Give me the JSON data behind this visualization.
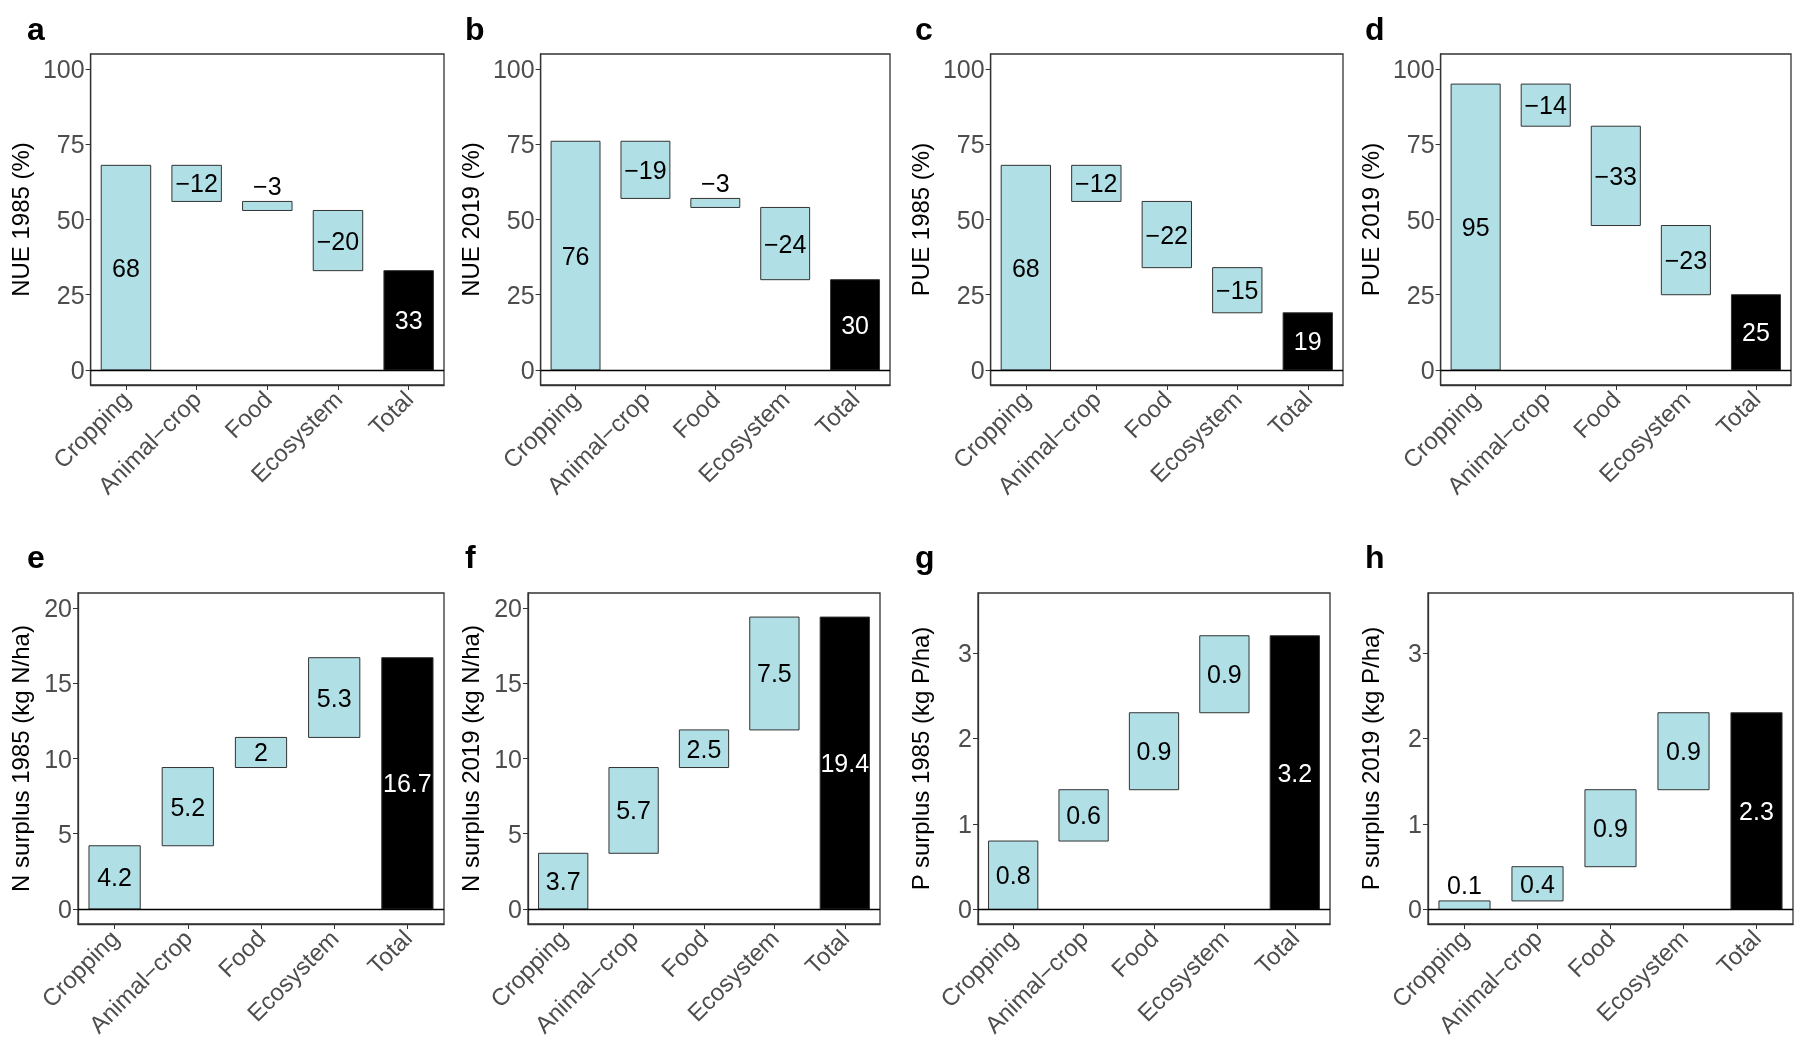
{
  "chart_data": [
    {
      "type": "bar",
      "title": "a",
      "ylabel": "NUE 1985 (%)",
      "categories": [
        "Cropping",
        "Animal−crop",
        "Food",
        "Ecosystem",
        "Total"
      ],
      "values": [
        68,
        -12,
        -3,
        -20,
        33
      ],
      "base": [
        0,
        68,
        56,
        53,
        0
      ],
      "colors": [
        "#b0e0e6",
        "#b0e0e6",
        "#b0e0e6",
        "#b0e0e6",
        "#000000"
      ],
      "value_labels": [
        "68",
        "−12",
        "−3",
        "−20",
        "33"
      ],
      "ylim": [
        -5,
        105
      ],
      "yticks": [
        0,
        25,
        50,
        75,
        100
      ],
      "ref_lines": [
        {
          "axis": "y",
          "value": 0
        }
      ]
    },
    {
      "type": "bar",
      "title": "b",
      "ylabel": "NUE 2019 (%)",
      "categories": [
        "Cropping",
        "Animal−crop",
        "Food",
        "Ecosystem",
        "Total"
      ],
      "values": [
        76,
        -19,
        -3,
        -24,
        30
      ],
      "base": [
        0,
        76,
        57,
        54,
        0
      ],
      "colors": [
        "#b0e0e6",
        "#b0e0e6",
        "#b0e0e6",
        "#b0e0e6",
        "#000000"
      ],
      "value_labels": [
        "76",
        "−19",
        "−3",
        "−24",
        "30"
      ],
      "ylim": [
        -5,
        105
      ],
      "yticks": [
        0,
        25,
        50,
        75,
        100
      ],
      "ref_lines": [
        {
          "axis": "y",
          "value": 0
        }
      ]
    },
    {
      "type": "bar",
      "title": "c",
      "ylabel": "PUE 1985 (%)",
      "categories": [
        "Cropping",
        "Animal−crop",
        "Food",
        "Ecosystem",
        "Total"
      ],
      "values": [
        68,
        -12,
        -22,
        -15,
        19
      ],
      "base": [
        0,
        68,
        56,
        34,
        0
      ],
      "colors": [
        "#b0e0e6",
        "#b0e0e6",
        "#b0e0e6",
        "#b0e0e6",
        "#000000"
      ],
      "value_labels": [
        "68",
        "−12",
        "−22",
        "−15",
        "19"
      ],
      "ylim": [
        -5,
        105
      ],
      "yticks": [
        0,
        25,
        50,
        75,
        100
      ],
      "ref_lines": [
        {
          "axis": "y",
          "value": 0
        }
      ]
    },
    {
      "type": "bar",
      "title": "d",
      "ylabel": "PUE 2019 (%)",
      "categories": [
        "Cropping",
        "Animal−crop",
        "Food",
        "Ecosystem",
        "Total"
      ],
      "values": [
        95,
        -14,
        -33,
        -23,
        25
      ],
      "base": [
        0,
        95,
        81,
        48,
        0
      ],
      "colors": [
        "#b0e0e6",
        "#b0e0e6",
        "#b0e0e6",
        "#b0e0e6",
        "#000000"
      ],
      "value_labels": [
        "95",
        "−14",
        "−33",
        "−23",
        "25"
      ],
      "ylim": [
        -5,
        105
      ],
      "yticks": [
        0,
        25,
        50,
        75,
        100
      ],
      "ref_lines": [
        {
          "axis": "y",
          "value": 0
        }
      ]
    },
    {
      "type": "bar",
      "title": "e",
      "ylabel": "N surplus 1985 (kg N/ha)",
      "categories": [
        "Cropping",
        "Animal−crop",
        "Food",
        "Ecosystem",
        "Total"
      ],
      "values": [
        4.2,
        5.2,
        2,
        5.3,
        16.7
      ],
      "base": [
        0,
        4.2,
        9.4,
        11.4,
        0
      ],
      "colors": [
        "#b0e0e6",
        "#b0e0e6",
        "#b0e0e6",
        "#b0e0e6",
        "#000000"
      ],
      "value_labels": [
        "4.2",
        "5.2",
        "2",
        "5.3",
        "16.7"
      ],
      "ylim": [
        -1,
        21
      ],
      "yticks": [
        0,
        5,
        10,
        15,
        20
      ],
      "ref_lines": [
        {
          "axis": "y",
          "value": 0
        }
      ]
    },
    {
      "type": "bar",
      "title": "f",
      "ylabel": "N surplus 2019 (kg N/ha)",
      "categories": [
        "Cropping",
        "Animal−crop",
        "Food",
        "Ecosystem",
        "Total"
      ],
      "values": [
        3.7,
        5.7,
        2.5,
        7.5,
        19.4
      ],
      "base": [
        0,
        3.7,
        9.4,
        11.9,
        0
      ],
      "colors": [
        "#b0e0e6",
        "#b0e0e6",
        "#b0e0e6",
        "#b0e0e6",
        "#000000"
      ],
      "value_labels": [
        "3.7",
        "5.7",
        "2.5",
        "7.5",
        "19.4"
      ],
      "ylim": [
        -1,
        21
      ],
      "yticks": [
        0,
        5,
        10,
        15,
        20
      ],
      "ref_lines": [
        {
          "axis": "y",
          "value": 0
        }
      ]
    },
    {
      "type": "bar",
      "title": "g",
      "ylabel": "P surplus 1985 (kg P/ha)",
      "categories": [
        "Cropping",
        "Animal−crop",
        "Food",
        "Ecosystem",
        "Total"
      ],
      "values": [
        0.8,
        0.6,
        0.9,
        0.9,
        3.2
      ],
      "base": [
        0,
        0.8,
        1.4,
        2.3,
        0
      ],
      "colors": [
        "#b0e0e6",
        "#b0e0e6",
        "#b0e0e6",
        "#b0e0e6",
        "#000000"
      ],
      "value_labels": [
        "0.8",
        "0.6",
        "0.9",
        "0.9",
        "3.2"
      ],
      "ylim": [
        -0.17,
        3.7
      ],
      "yticks": [
        0,
        1,
        2,
        3
      ],
      "ref_lines": [
        {
          "axis": "y",
          "value": 0
        }
      ]
    },
    {
      "type": "bar",
      "title": "h",
      "ylabel": "P surplus 2019 (kg P/ha)",
      "categories": [
        "Cropping",
        "Animal−crop",
        "Food",
        "Ecosystem",
        "Total"
      ],
      "values": [
        0.1,
        0.4,
        0.9,
        0.9,
        2.3
      ],
      "base": [
        0,
        0.1,
        0.5,
        1.4,
        0
      ],
      "colors": [
        "#b0e0e6",
        "#b0e0e6",
        "#b0e0e6",
        "#b0e0e6",
        "#000000"
      ],
      "value_labels": [
        "0.1",
        "0.4",
        "0.9",
        "0.9",
        "2.3"
      ],
      "ylim": [
        -0.17,
        3.7
      ],
      "yticks": [
        0,
        1,
        2,
        3
      ],
      "ref_lines": [
        {
          "axis": "y",
          "value": 0
        }
      ]
    }
  ]
}
